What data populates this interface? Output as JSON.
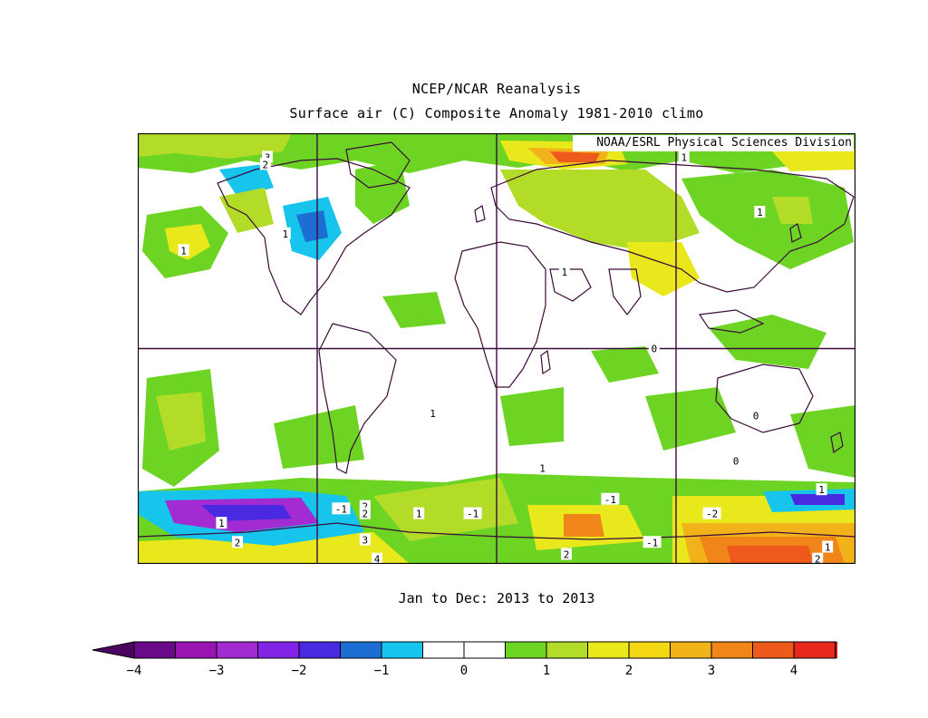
{
  "title_line1": "NCEP/NCAR Reanalysis",
  "title_line2": "Surface air (C) Composite Anomaly 1981-2010 climo",
  "credit": "NOAA/ESRL Physical Sciences Division",
  "period": "Jan to Dec: 2013 to 2013",
  "legend": {
    "tick_labels": [
      "-4",
      "-3",
      "-2",
      "-1",
      "0",
      "1",
      "2",
      "3",
      "4"
    ],
    "colors": [
      "#6a0a8a",
      "#9a14b4",
      "#a22cd2",
      "#8224e6",
      "#4a2ae0",
      "#1c6ed2",
      "#16c4ec",
      "#ffffff",
      "#ffffff",
      "#6ed424",
      "#b2dc28",
      "#e8e81c",
      "#f4d814",
      "#f2b21a",
      "#f0861a",
      "#ee5a1c",
      "#e8281c"
    ],
    "under_color": "#4a0460",
    "over_color": "#c01414"
  },
  "map": {
    "land_color": "#6ed424",
    "boundary_color": "#3a0a3a",
    "contour_labels": [
      {
        "text": "1",
        "lon": -86,
        "lat": 80
      },
      {
        "text": "3",
        "lon": 65,
        "lat": 80
      },
      {
        "text": "2",
        "lon": 64,
        "lat": 77
      },
      {
        "text": "1",
        "lon": -48,
        "lat": 57
      },
      {
        "text": "1",
        "lon": 74,
        "lat": 48
      },
      {
        "text": "1",
        "lon": 23,
        "lat": 41
      },
      {
        "text": "1",
        "lon": -146,
        "lat": 32
      },
      {
        "text": "0",
        "lon": -101,
        "lat": 0
      },
      {
        "text": "0",
        "lon": -50,
        "lat": -28
      },
      {
        "text": "0",
        "lon": -60,
        "lat": -47
      },
      {
        "text": "1",
        "lon": 148,
        "lat": -27
      },
      {
        "text": "1",
        "lon": -157,
        "lat": -50
      },
      {
        "text": "1",
        "lon": -17,
        "lat": -59
      },
      {
        "text": "-1",
        "lon": -123,
        "lat": -63
      },
      {
        "text": "-2",
        "lon": -72,
        "lat": -69
      },
      {
        "text": "-1",
        "lon": -102,
        "lat": -81
      },
      {
        "text": "-1",
        "lon": 102,
        "lat": -67
      },
      {
        "text": "2",
        "lon": 114,
        "lat": -66
      },
      {
        "text": "2",
        "lon": 114,
        "lat": -69
      },
      {
        "text": "1",
        "lon": 141,
        "lat": -69
      },
      {
        "text": "-1",
        "lon": 168,
        "lat": -69
      },
      {
        "text": "1",
        "lon": 42,
        "lat": -73
      },
      {
        "text": "2",
        "lon": 50,
        "lat": -81
      },
      {
        "text": "3",
        "lon": 114,
        "lat": -80
      },
      {
        "text": "4",
        "lon": 120,
        "lat": -88
      },
      {
        "text": "2",
        "lon": -19,
        "lat": -88
      },
      {
        "text": "1",
        "lon": -14,
        "lat": -83
      },
      {
        "text": "2",
        "lon": -145,
        "lat": -86
      }
    ]
  }
}
